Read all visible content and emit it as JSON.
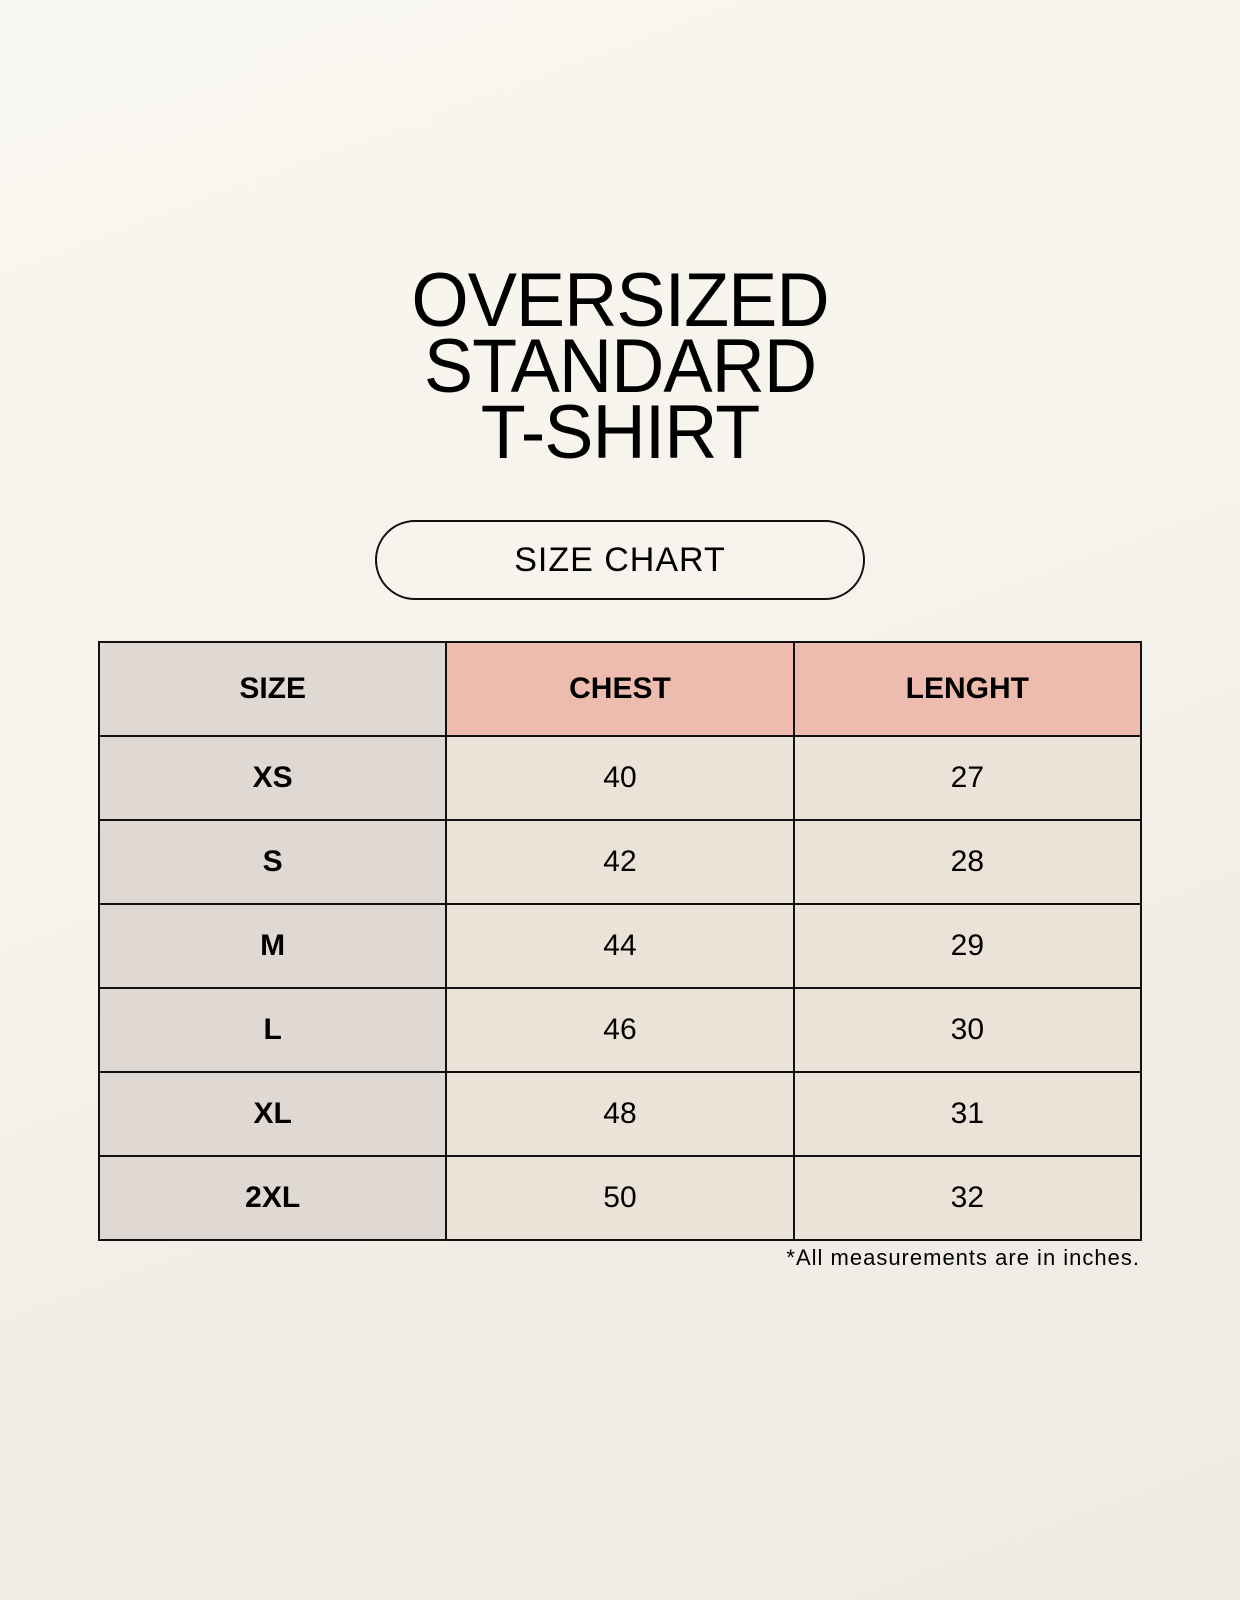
{
  "title": {
    "lines": [
      "OVERSIZED",
      "STANDARD",
      "T-SHIRT"
    ]
  },
  "badge": "SIZE CHART",
  "colors": {
    "size_column": "#e0d9d3",
    "header_accent": "#eebcae",
    "cell": "#ebe3d8"
  },
  "table": {
    "headers": [
      "SIZE",
      "CHEST",
      "LENGHT"
    ],
    "rows": [
      [
        "XS",
        "40",
        "27"
      ],
      [
        "S",
        "42",
        "28"
      ],
      [
        "M",
        "44",
        "29"
      ],
      [
        "L",
        "46",
        "30"
      ],
      [
        "XL",
        "48",
        "31"
      ],
      [
        "2XL",
        "50",
        "32"
      ]
    ]
  },
  "footnote": "*All measurements are in inches."
}
